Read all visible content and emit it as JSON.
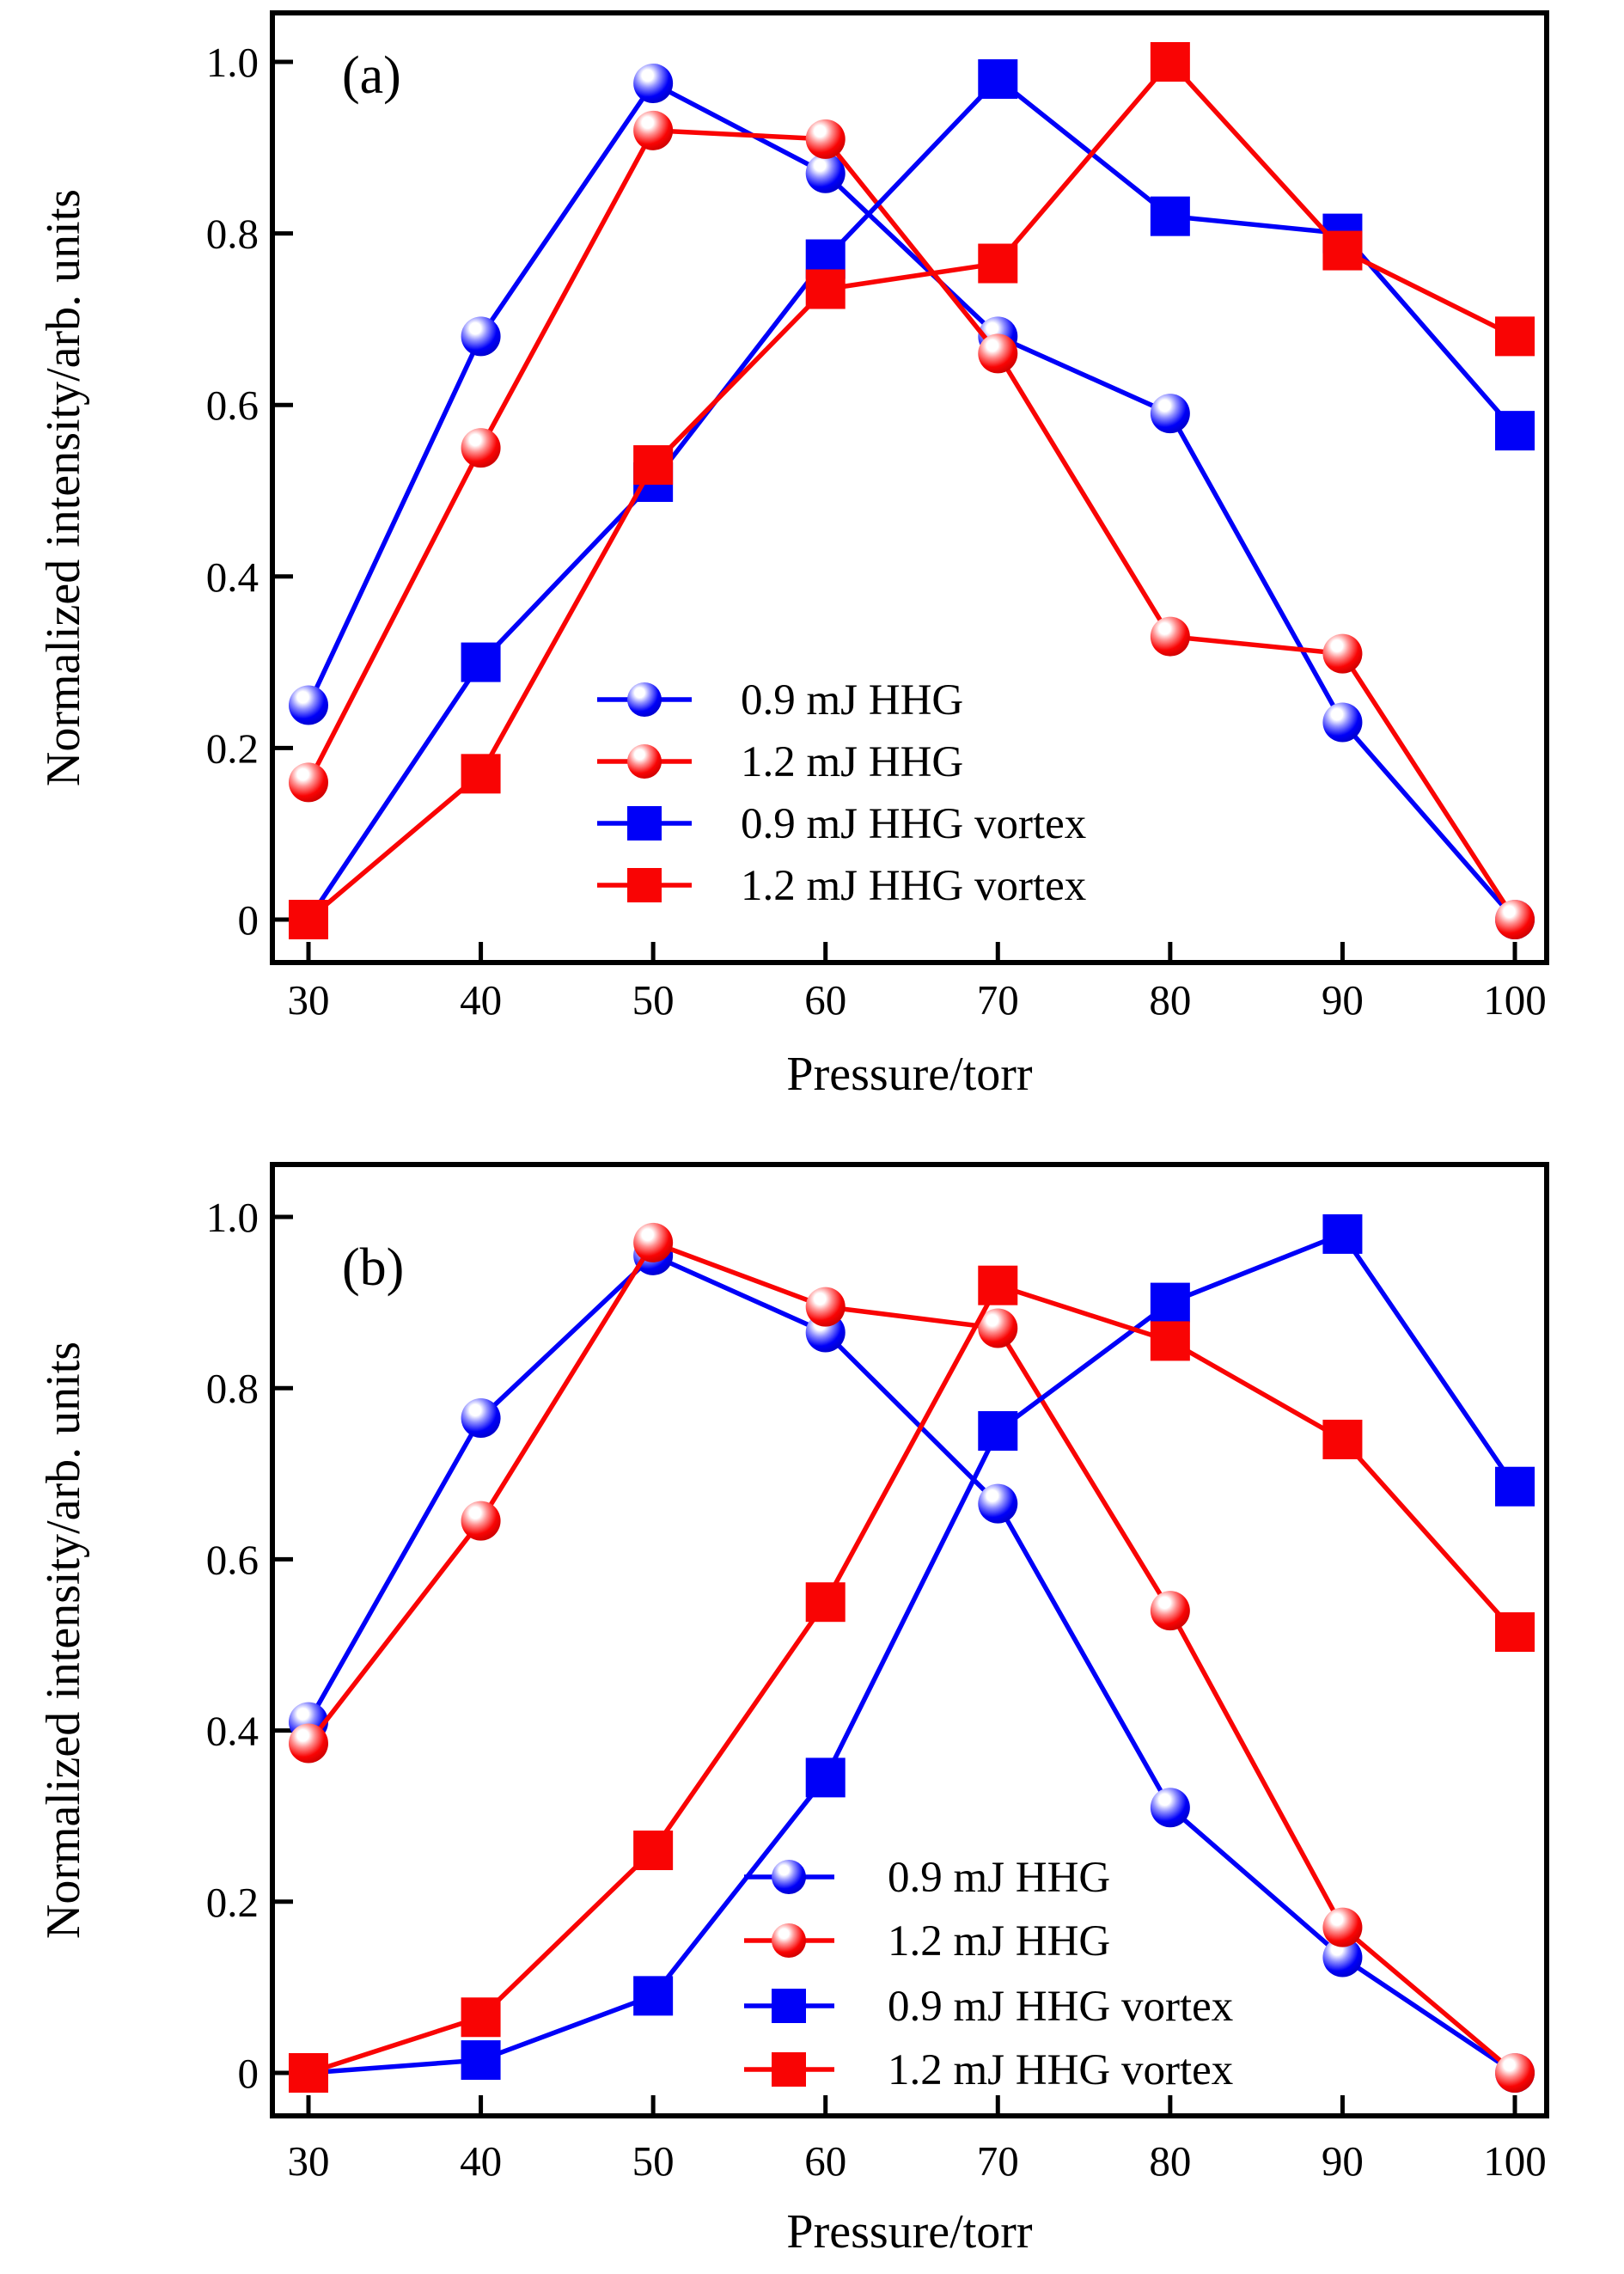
{
  "colors": {
    "blue": "#0000F8",
    "blue_dark": "#0000C0",
    "blue_light": "#9090FF",
    "red": "#F90404",
    "red_dark": "#C00000",
    "red_light": "#FF9090",
    "highlight": "#FFFFFF",
    "axis": "#000000"
  },
  "chart_data": [
    {
      "id": "a",
      "type": "line",
      "panel_label": "(a)",
      "xlabel": "Pressure/torr",
      "ylabel": "Normalized intensity/arb. units",
      "x": [
        30,
        40,
        50,
        60,
        70,
        80,
        90,
        100
      ],
      "x_tick_labels": [
        "30",
        "40",
        "50",
        "60",
        "70",
        "80",
        "90",
        "100"
      ],
      "y_tick_values": [
        1.0,
        0.8,
        0.6,
        0.4,
        0.2,
        0
      ],
      "y_tick_labels": [
        "1.0",
        "0.8",
        "0.6",
        "0.4",
        "0.2",
        "0"
      ],
      "xlim": [
        28,
        102
      ],
      "ylim": [
        -0.05,
        1.06
      ],
      "grid": false,
      "legend_position": "inside-lower-middle",
      "series": [
        {
          "name": "0.9 mJ HHG",
          "color": "blue",
          "marker": "circle",
          "values": [
            0.25,
            0.68,
            0.975,
            0.87,
            0.68,
            0.59,
            0.23,
            0.0
          ]
        },
        {
          "name": "1.2 mJ HHG",
          "color": "red",
          "marker": "circle",
          "values": [
            0.16,
            0.55,
            0.92,
            0.91,
            0.66,
            0.33,
            0.31,
            0.0
          ]
        },
        {
          "name": "0.9 mJ HHG vortex",
          "color": "blue",
          "marker": "square",
          "values": [
            0.0,
            0.3,
            0.51,
            0.77,
            0.98,
            0.82,
            0.8,
            0.57
          ]
        },
        {
          "name": "1.2 mJ HHG vortex",
          "color": "red",
          "marker": "square",
          "values": [
            0.0,
            0.17,
            0.53,
            0.735,
            0.765,
            1.0,
            0.78,
            0.68
          ]
        }
      ]
    },
    {
      "id": "b",
      "type": "line",
      "panel_label": "(b)",
      "xlabel": "Pressure/torr",
      "ylabel": "Normalized intensity/arb. units",
      "x": [
        30,
        40,
        50,
        60,
        70,
        80,
        90,
        100
      ],
      "x_tick_labels": [
        "30",
        "40",
        "50",
        "60",
        "70",
        "80",
        "90",
        "100"
      ],
      "y_tick_values": [
        1.0,
        0.8,
        0.6,
        0.4,
        0.2,
        0
      ],
      "y_tick_labels": [
        "1.0",
        "0.8",
        "0.6",
        "0.4",
        "0.2",
        "0"
      ],
      "xlim": [
        28,
        102
      ],
      "ylim": [
        -0.05,
        1.06
      ],
      "grid": false,
      "legend_position": "inside-lower-middle",
      "series": [
        {
          "name": "0.9 mJ HHG",
          "color": "blue",
          "marker": "circle",
          "values": [
            0.41,
            0.765,
            0.955,
            0.865,
            0.665,
            0.31,
            0.135,
            0.0
          ]
        },
        {
          "name": "1.2 mJ HHG",
          "color": "red",
          "marker": "circle",
          "values": [
            0.385,
            0.645,
            0.97,
            0.895,
            0.87,
            0.54,
            0.17,
            0.0
          ]
        },
        {
          "name": "0.9 mJ HHG vortex",
          "color": "blue",
          "marker": "square",
          "values": [
            0.0,
            0.015,
            0.09,
            0.345,
            0.75,
            0.9,
            0.98,
            0.685
          ]
        },
        {
          "name": "1.2 mJ HHG vortex",
          "color": "red",
          "marker": "square",
          "values": [
            0.0,
            0.065,
            0.26,
            0.55,
            0.92,
            0.855,
            0.74,
            0.515
          ]
        }
      ]
    }
  ]
}
